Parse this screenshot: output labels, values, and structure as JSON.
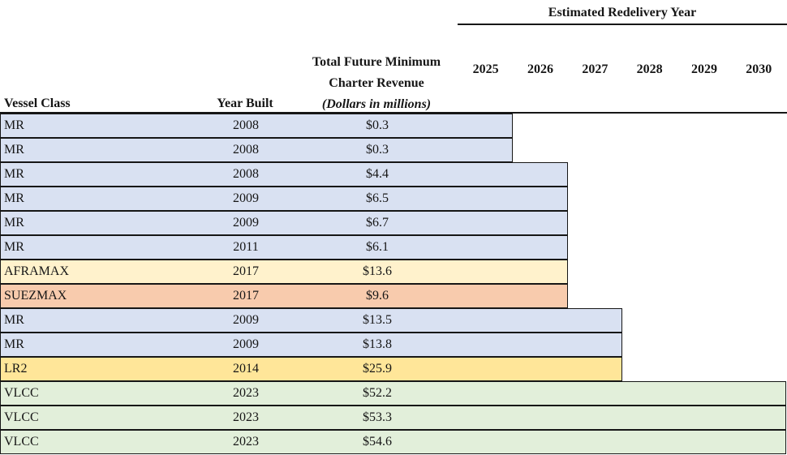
{
  "header": {
    "group_title": "Estimated Redelivery Year",
    "columns": {
      "vessel_class": "Vessel Class",
      "year_built": "Year Built",
      "revenue_line1": "Total Future Minimum",
      "revenue_line2": "Charter Revenue",
      "revenue_line3": "(Dollars in millions)"
    }
  },
  "years": [
    "2025",
    "2026",
    "2027",
    "2028",
    "2029",
    "2030"
  ],
  "table": {
    "rows": [
      {
        "vessel_class": "MR",
        "year_built": "2008",
        "revenue": "$0.3",
        "redelivery_year": 2025
      },
      {
        "vessel_class": "MR",
        "year_built": "2008",
        "revenue": "$0.3",
        "redelivery_year": 2025
      },
      {
        "vessel_class": "MR",
        "year_built": "2008",
        "revenue": "$4.4",
        "redelivery_year": 2026
      },
      {
        "vessel_class": "MR",
        "year_built": "2009",
        "revenue": "$6.5",
        "redelivery_year": 2026
      },
      {
        "vessel_class": "MR",
        "year_built": "2009",
        "revenue": "$6.7",
        "redelivery_year": 2026
      },
      {
        "vessel_class": "MR",
        "year_built": "2011",
        "revenue": "$6.1",
        "redelivery_year": 2026
      },
      {
        "vessel_class": "AFRAMAX",
        "year_built": "2017",
        "revenue": "$13.6",
        "redelivery_year": 2026
      },
      {
        "vessel_class": "SUEZMAX",
        "year_built": "2017",
        "revenue": "$9.6",
        "redelivery_year": 2026
      },
      {
        "vessel_class": "MR",
        "year_built": "2009",
        "revenue": "$13.5",
        "redelivery_year": 2027
      },
      {
        "vessel_class": "MR",
        "year_built": "2009",
        "revenue": "$13.8",
        "redelivery_year": 2027
      },
      {
        "vessel_class": "LR2",
        "year_built": "2014",
        "revenue": "$25.9",
        "redelivery_year": 2027
      },
      {
        "vessel_class": "VLCC",
        "year_built": "2023",
        "revenue": "$52.2",
        "redelivery_year": 2030
      },
      {
        "vessel_class": "VLCC",
        "year_built": "2023",
        "revenue": "$53.3",
        "redelivery_year": 2030
      },
      {
        "vessel_class": "VLCC",
        "year_built": "2023",
        "revenue": "$54.6",
        "redelivery_year": 2030
      }
    ]
  },
  "class_colors": {
    "MR": "#D9E1F2",
    "AFRAMAX": "#FFF2CC",
    "SUEZMAX": "#F8CBAD",
    "LR2": "#FFE699",
    "VLCC": "#E2EFDA"
  },
  "border_color": "#161616",
  "chart_data": {
    "type": "gantt",
    "title": "Estimated Redelivery Year",
    "columns": [
      "Vessel Class",
      "Year Built",
      "Total Future Minimum Charter Revenue (Dollars in millions)"
    ],
    "x_axis_years": [
      2025,
      2026,
      2027,
      2028,
      2029,
      2030
    ],
    "legend_position": "none",
    "grid": false,
    "rows": [
      {
        "vessel_class": "MR",
        "year_built": 2008,
        "revenue_musd": 0.3,
        "estimated_redelivery_year": 2025
      },
      {
        "vessel_class": "MR",
        "year_built": 2008,
        "revenue_musd": 0.3,
        "estimated_redelivery_year": 2025
      },
      {
        "vessel_class": "MR",
        "year_built": 2008,
        "revenue_musd": 4.4,
        "estimated_redelivery_year": 2026
      },
      {
        "vessel_class": "MR",
        "year_built": 2009,
        "revenue_musd": 6.5,
        "estimated_redelivery_year": 2026
      },
      {
        "vessel_class": "MR",
        "year_built": 2009,
        "revenue_musd": 6.7,
        "estimated_redelivery_year": 2026
      },
      {
        "vessel_class": "MR",
        "year_built": 2011,
        "revenue_musd": 6.1,
        "estimated_redelivery_year": 2026
      },
      {
        "vessel_class": "AFRAMAX",
        "year_built": 2017,
        "revenue_musd": 13.6,
        "estimated_redelivery_year": 2026
      },
      {
        "vessel_class": "SUEZMAX",
        "year_built": 2017,
        "revenue_musd": 9.6,
        "estimated_redelivery_year": 2026
      },
      {
        "vessel_class": "MR",
        "year_built": 2009,
        "revenue_musd": 13.5,
        "estimated_redelivery_year": 2027
      },
      {
        "vessel_class": "MR",
        "year_built": 2009,
        "revenue_musd": 13.8,
        "estimated_redelivery_year": 2027
      },
      {
        "vessel_class": "LR2",
        "year_built": 2014,
        "revenue_musd": 25.9,
        "estimated_redelivery_year": 2027
      },
      {
        "vessel_class": "VLCC",
        "year_built": 2023,
        "revenue_musd": 52.2,
        "estimated_redelivery_year": 2030
      },
      {
        "vessel_class": "VLCC",
        "year_built": 2023,
        "revenue_musd": 53.3,
        "estimated_redelivery_year": 2030
      },
      {
        "vessel_class": "VLCC",
        "year_built": 2023,
        "revenue_musd": 54.6,
        "estimated_redelivery_year": 2030
      }
    ]
  }
}
